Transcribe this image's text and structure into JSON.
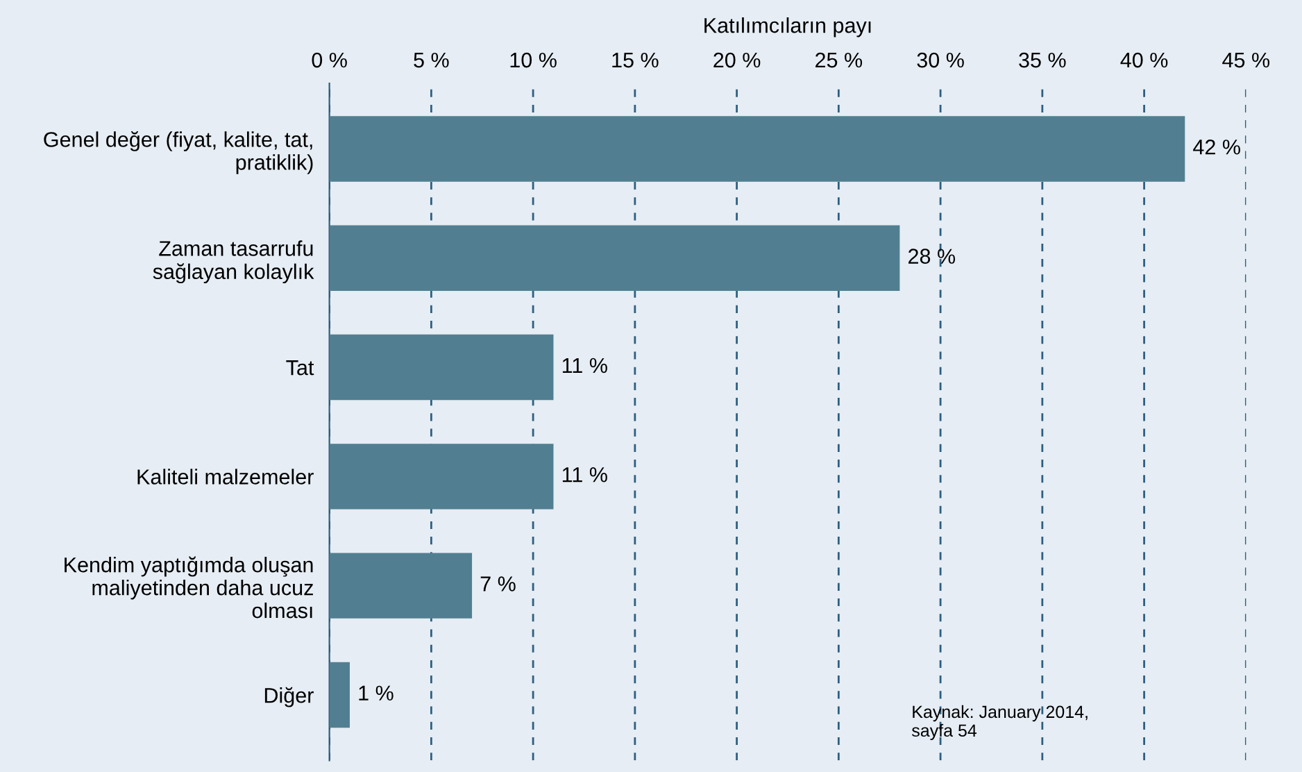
{
  "chart_data": {
    "type": "bar",
    "orientation": "horizontal",
    "xlabel": "Katılımcıların payı",
    "categories": [
      "Genel değer (fiyat, kalite, tat,\npratiklik)",
      "Zaman tasarrufu\nsağlayan kolaylık",
      "Tat",
      "Kaliteli malzemeler",
      "Kendim yaptığımda oluşan\nmaliyetinden daha ucuz\nolması",
      "Diğer"
    ],
    "values": [
      42,
      28,
      11,
      11,
      7,
      1
    ],
    "value_labels": [
      "42 %",
      "28 %",
      "11 %",
      "11 %",
      "7 %",
      "1 %"
    ],
    "color": "#517f91",
    "xlim": [
      0,
      45
    ],
    "xticks": [
      {
        "value": 0,
        "label": "0 %"
      },
      {
        "value": 5,
        "label": "5 %"
      },
      {
        "value": 10,
        "label": "10 %"
      },
      {
        "value": 15,
        "label": "15 %"
      },
      {
        "value": 20,
        "label": "20 %"
      },
      {
        "value": 25,
        "label": "25 %"
      },
      {
        "value": 30,
        "label": "30 %"
      },
      {
        "value": 35,
        "label": "35 %"
      },
      {
        "value": 40,
        "label": "40 %"
      },
      {
        "value": 45,
        "label": "45 %"
      }
    ],
    "grid": "x",
    "annotations": [
      "Kaynak: January 2014,\nsayfa 54"
    ]
  }
}
